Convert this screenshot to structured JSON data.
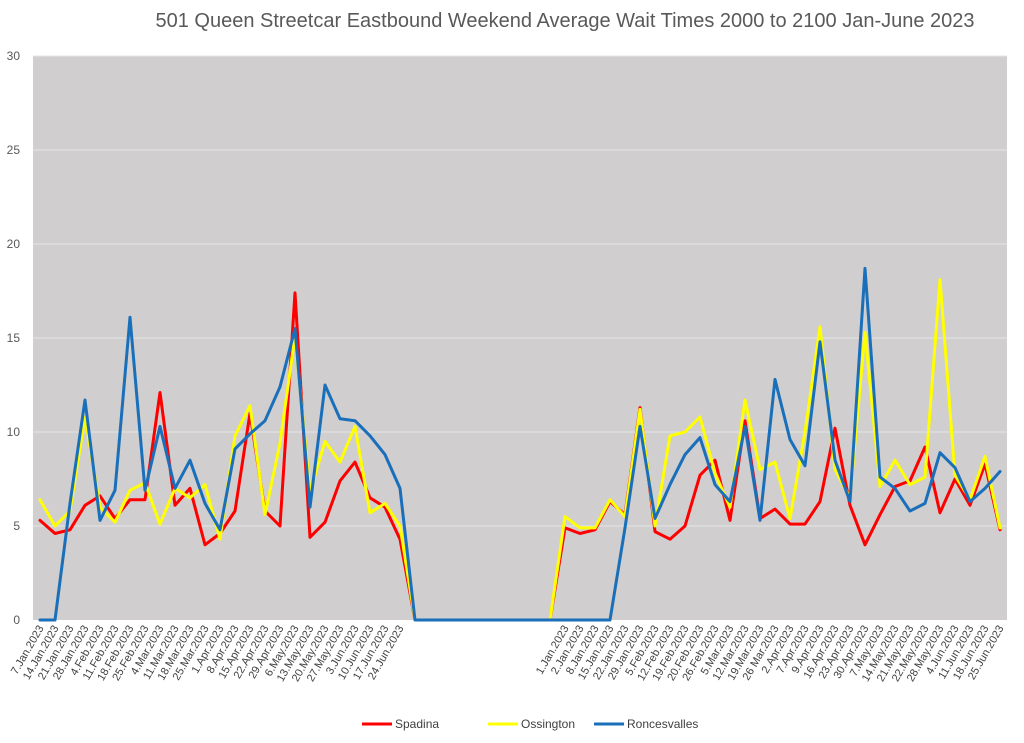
{
  "chart_data": {
    "type": "line",
    "title": "501 Queen Streetcar Eastbound Weekend Average Wait Times 2000 to 2100 Jan-June 2023",
    "xlabel": "",
    "ylabel": "",
    "ylim": [
      0,
      30
    ],
    "yticks": [
      0,
      5,
      10,
      15,
      20,
      25,
      30
    ],
    "grid": true,
    "legend_position": "bottom",
    "categories": [
      "7.Jan.2023",
      "14.Jan.2023",
      "21.Jan.2023",
      "28.Jan.2023",
      "4.Feb.2023",
      "11.Feb.2023",
      "18.Feb.2023",
      "25.Feb.2023",
      "4.Mar.2023",
      "11.Mar.2023",
      "18.Mar.2023",
      "25.Mar.2023",
      "1.Apr.2023",
      "8.Apr.2023",
      "15.Apr.2023",
      "22.Apr.2023",
      "29.Apr.2023",
      "6.May.2023",
      "13.May.2023",
      "20.May.2023",
      "27.May.2023",
      "3.Jun.2023",
      "10.Jun.2023",
      "17.Jun.2023",
      "24.Jun.2023",
      "",
      "",
      "",
      "",
      "",
      "",
      "",
      "",
      "",
      "",
      "1.Jan.2023",
      "2.Jan.2023",
      "8.Jan.2023",
      "15.Jan.2023",
      "22.Jan.2023",
      "29.Jan.2023",
      "5.Feb.2023",
      "12.Feb.2023",
      "19.Feb.2023",
      "20.Feb.2023",
      "26.Feb.2023",
      "5.Mar.2023",
      "12.Mar.2023",
      "19.Mar.2023",
      "26 Mar.2023",
      "2.Apr.2023",
      "7.Apr.2023",
      "9.Apr.2023",
      "16.Apr.2023",
      "23.Apr.2023",
      "30.Apr.2023",
      "7.May.2023",
      "14.May.2023",
      "21.May.2023",
      "22.May.2023",
      "28.May.2023",
      "4.Jun.2023",
      "11.Jun.2023",
      "18.Jun.2023",
      "25.Jun.2023"
    ],
    "series": [
      {
        "name": "Spadina",
        "color": "#ff0000",
        "values": [
          5.3,
          4.6,
          4.8,
          6.1,
          6.6,
          5.4,
          6.4,
          6.4,
          12.1,
          6.1,
          7.0,
          4.0,
          4.6,
          5.8,
          11.0,
          5.8,
          5.0,
          17.4,
          4.4,
          5.2,
          7.4,
          8.4,
          6.5,
          6.0,
          4.3,
          0,
          0,
          0,
          0,
          0,
          0,
          0,
          0,
          0,
          0,
          4.9,
          4.6,
          4.8,
          6.3,
          5.6,
          11.3,
          4.7,
          4.3,
          5.0,
          7.7,
          8.5,
          5.3,
          10.6,
          5.4,
          5.9,
          5.1,
          5.1,
          6.3,
          10.2,
          6.1,
          4.0,
          5.6,
          7.1,
          7.4,
          9.2,
          5.7,
          7.5,
          6.1,
          8.3,
          4.8
        ]
      },
      {
        "name": "Ossington",
        "color": "#ffff00",
        "values": [
          6.4,
          5.0,
          5.8,
          10.8,
          6.0,
          5.2,
          6.9,
          7.3,
          5.1,
          7.0,
          6.5,
          7.2,
          4.3,
          9.8,
          11.4,
          5.6,
          9.4,
          15.1,
          6.8,
          9.5,
          8.4,
          10.3,
          5.7,
          6.2,
          5.0,
          0,
          0,
          0,
          0,
          0,
          0,
          0,
          0,
          0,
          0,
          5.5,
          4.9,
          4.9,
          6.4,
          5.5,
          11.2,
          5.0,
          9.8,
          10.0,
          10.8,
          7.8,
          6.0,
          11.7,
          8.0,
          8.4,
          5.4,
          10.0,
          15.6,
          8.0,
          6.5,
          15.3,
          7.1,
          8.5,
          7.2,
          7.6,
          18.1,
          7.7,
          6.4,
          8.7,
          4.9
        ]
      },
      {
        "name": "Roncesvalles",
        "color": "#1a6fba",
        "values": [
          0,
          0,
          6.2,
          11.7,
          5.3,
          6.9,
          16.1,
          6.9,
          10.3,
          7.0,
          8.5,
          6.2,
          4.8,
          9.1,
          9.9,
          10.6,
          12.4,
          15.5,
          6.0,
          12.5,
          10.7,
          10.6,
          9.8,
          8.8,
          7.0,
          0,
          0,
          0,
          0,
          0,
          0,
          0,
          0,
          0,
          0,
          0,
          0,
          0,
          0,
          4.9,
          10.3,
          5.4,
          7.2,
          8.8,
          9.7,
          7.2,
          6.3,
          10.3,
          5.3,
          12.8,
          9.6,
          8.2,
          14.8,
          8.5,
          6.3,
          18.7,
          7.6,
          7.0,
          5.8,
          6.2,
          8.9,
          8.1,
          6.3,
          7.0,
          7.9
        ]
      }
    ]
  }
}
